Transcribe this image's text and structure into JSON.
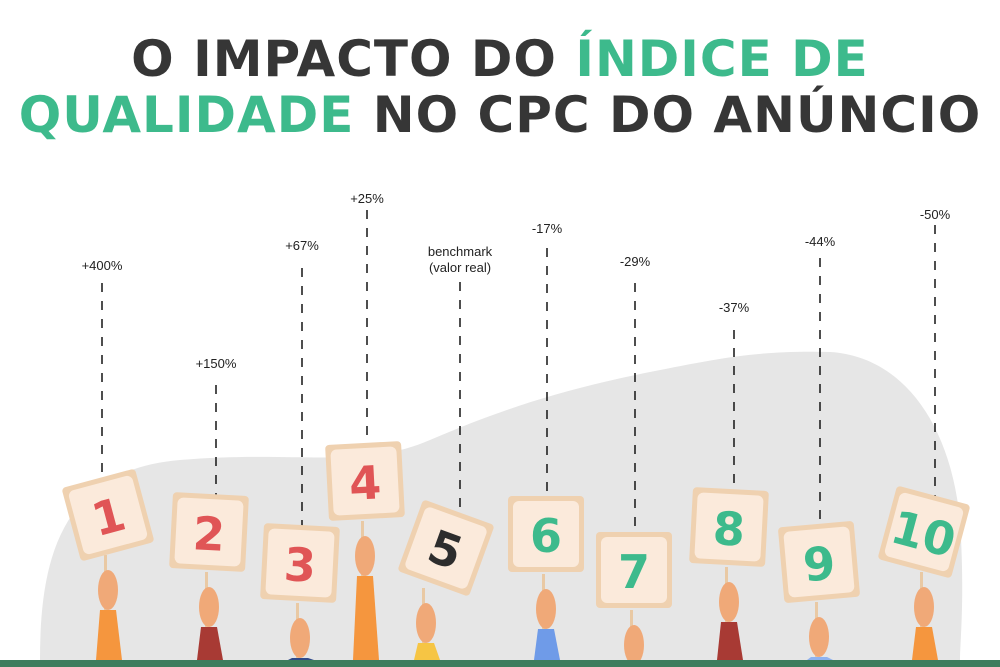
{
  "title": {
    "line1_dark": "O IMPACTO DO",
    "line1_green": "ÍNDICE DE",
    "line2_green": "QUALIDADE",
    "line2_dark": "NO CPC DO ANÚNCIO"
  },
  "colors": {
    "dark": "#363636",
    "green": "#3dba8c",
    "red": "#e05556",
    "sign": "#fbeadb",
    "sign_border": "#efd1b0",
    "blob": "#e6e6e6",
    "baseline": "#3e7d5e"
  },
  "signs": [
    {
      "number": "1",
      "label": "+400%",
      "color": "#e05556"
    },
    {
      "number": "2",
      "label": "+150%",
      "color": "#e05556"
    },
    {
      "number": "3",
      "label": "+67%",
      "color": "#e05556"
    },
    {
      "number": "4",
      "label": "+25%",
      "color": "#e05556"
    },
    {
      "number": "5",
      "label": "benchmark",
      "label2": "(valor real)",
      "color": "#2d2d2d"
    },
    {
      "number": "6",
      "label": "-17%",
      "color": "#3dba8c"
    },
    {
      "number": "7",
      "label": "-29%",
      "color": "#3dba8c"
    },
    {
      "number": "8",
      "label": "-37%",
      "color": "#3dba8c"
    },
    {
      "number": "9",
      "label": "-44%",
      "color": "#3dba8c"
    },
    {
      "number": "10",
      "label": "-50%",
      "color": "#3dba8c"
    }
  ]
}
